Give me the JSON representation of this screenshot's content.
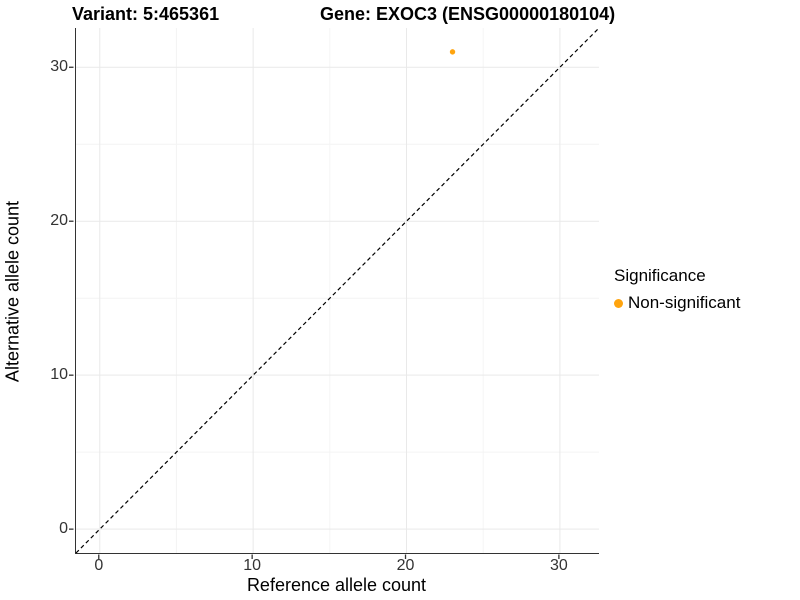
{
  "title": {
    "variant_label": "Variant: 5:465361",
    "gene_label": "Gene: EXOC3 (ENSG00000180104)"
  },
  "chart_data": {
    "type": "scatter",
    "title": "Variant: 5:465361    Gene: EXOC3 (ENSG00000180104)",
    "xlabel": "Reference allele count",
    "ylabel": "Alternative allele count",
    "xlim": [
      -1.55,
      32.55
    ],
    "ylim": [
      -1.55,
      32.55
    ],
    "x_ticks": [
      0,
      10,
      20,
      30
    ],
    "y_ticks": [
      0,
      10,
      20,
      30
    ],
    "x_minor_ticks": [
      5,
      15,
      25
    ],
    "y_minor_ticks": [
      5,
      15,
      25
    ],
    "grid": true,
    "series": [
      {
        "name": "Non-significant",
        "color": "#FFA40E",
        "points": [
          {
            "x": 23,
            "y": 31
          }
        ]
      }
    ],
    "reference_line": {
      "type": "identity",
      "equation": "y = x",
      "style": "dashed",
      "color": "#000000"
    },
    "legend": {
      "title": "Significance",
      "position": "right",
      "entries": [
        {
          "label": "Non-significant",
          "color": "#FFA40E"
        }
      ]
    }
  },
  "colors": {
    "grid_major": "#E9E9E9",
    "grid_minor": "#F4F4F4",
    "axis_line": "#333333",
    "tick_mark": "#333333",
    "point": "#FFA40E"
  }
}
